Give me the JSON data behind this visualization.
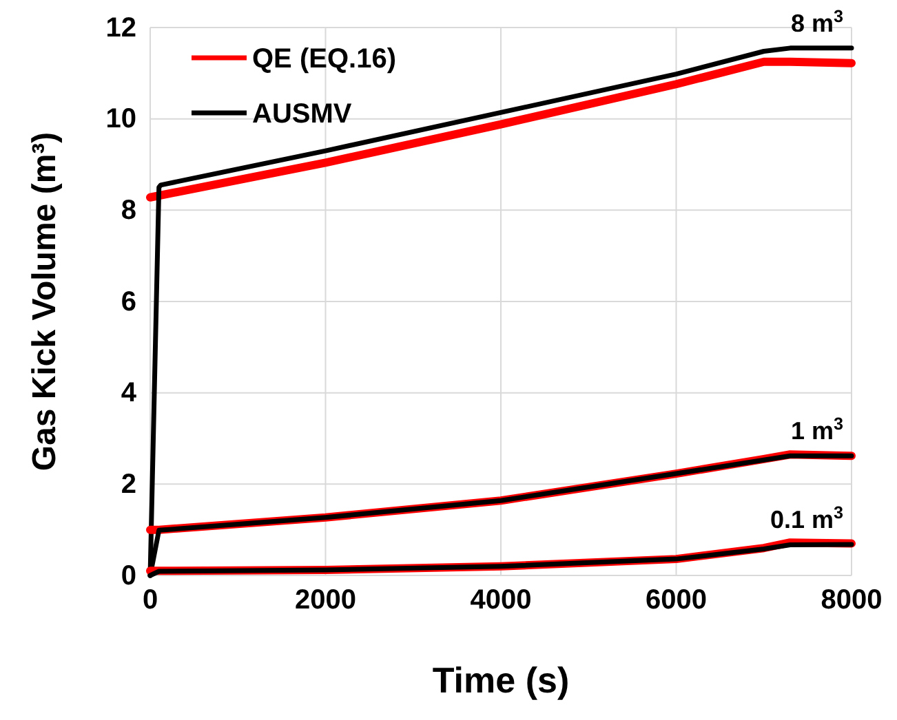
{
  "chart_data": {
    "type": "line",
    "xlabel": "Time (s)",
    "ylabel": "Gas Kick Volume (m³)",
    "xlim": [
      0,
      8000
    ],
    "xticks": [
      0,
      2000,
      4000,
      6000,
      8000
    ],
    "ylim": [
      0,
      12
    ],
    "yticks": [
      0,
      2,
      4,
      6,
      8,
      10,
      12
    ],
    "grid": true,
    "legend": "top left",
    "line_style": "solid",
    "marker": "none",
    "series": [
      {
        "name": "QE (EQ.16)",
        "color": "#ff0000",
        "x": [
          0,
          2000,
          4000,
          6000,
          7000,
          7300,
          8000
        ],
        "values": [
          8.28,
          9.04,
          9.88,
          10.76,
          11.25,
          11.25,
          11.22
        ]
      },
      {
        "name": "AUSMV",
        "color": "#000000",
        "x": [
          0,
          100,
          120,
          2000,
          4000,
          6000,
          7000,
          7300,
          8000
        ],
        "values": [
          0,
          8.5,
          8.55,
          9.3,
          10.14,
          10.98,
          11.48,
          11.55,
          11.55
        ]
      },
      {
        "color": "#ff0000",
        "x": [
          0,
          100,
          2000,
          4000,
          6000,
          7000,
          7300,
          8000
        ],
        "values": [
          1.0,
          1.0,
          1.27,
          1.64,
          2.23,
          2.55,
          2.65,
          2.62
        ]
      },
      {
        "color": "#000000",
        "x": [
          0,
          100,
          2000,
          4000,
          6000,
          7000,
          7300,
          8000
        ],
        "values": [
          0,
          0.99,
          1.27,
          1.64,
          2.23,
          2.53,
          2.62,
          2.62
        ]
      },
      {
        "color": "#ff0000",
        "x": [
          0,
          100,
          2000,
          4000,
          6000,
          7000,
          7300,
          8000
        ],
        "values": [
          0.1,
          0.1,
          0.12,
          0.2,
          0.36,
          0.6,
          0.72,
          0.7
        ]
      },
      {
        "color": "#000000",
        "x": [
          0,
          100,
          2000,
          4000,
          6000,
          7000,
          7300,
          8000
        ],
        "values": [
          0,
          0.09,
          0.12,
          0.2,
          0.36,
          0.58,
          0.67,
          0.68
        ]
      }
    ],
    "annotations": [
      "8 m$^{3}$",
      "1 m$^{3}$",
      "0.1 m$^{3}$"
    ]
  }
}
